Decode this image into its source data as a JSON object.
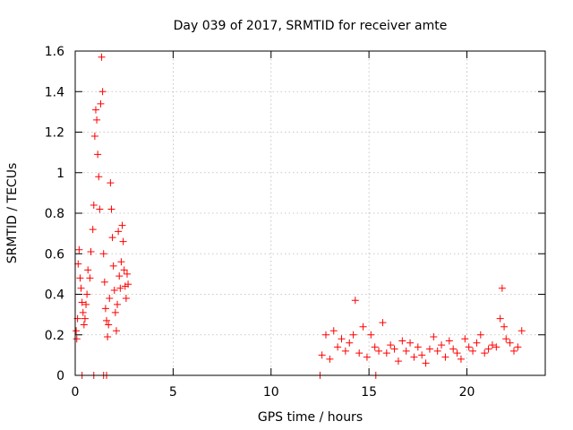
{
  "chart_data": {
    "type": "scatter",
    "title": "Day 039 of 2017, SRMTID for receiver amte",
    "xlabel": "GPS time / hours",
    "ylabel": "SRMTID / TECUs",
    "xlim": [
      0,
      24
    ],
    "ylim": [
      0,
      1.6
    ],
    "xticks": [
      0,
      5,
      10,
      15,
      20
    ],
    "yticks": [
      0,
      0.2,
      0.4,
      0.6,
      0.8,
      1,
      1.2,
      1.4,
      1.6
    ],
    "xtick_labels": [
      "0",
      "5",
      "10",
      "15",
      "20"
    ],
    "ytick_labels": [
      "0",
      "0.2",
      "0.4",
      "0.6",
      "0.8",
      "1",
      "1.2",
      "1.4",
      "1.6"
    ],
    "grid": true,
    "marker": "plus",
    "series": [
      {
        "name": "SRMTID",
        "color": "#ff0000",
        "x": [
          0.05,
          0.08,
          0.12,
          0.15,
          0.2,
          0.25,
          0.3,
          0.35,
          0.4,
          0.45,
          0.5,
          0.55,
          0.6,
          0.65,
          0.75,
          0.8,
          0.9,
          0.95,
          1.0,
          1.05,
          1.1,
          1.15,
          1.2,
          1.25,
          1.3,
          1.35,
          1.4,
          1.45,
          1.5,
          1.55,
          1.6,
          1.65,
          1.7,
          1.75,
          1.8,
          1.85,
          1.9,
          1.95,
          2.0,
          2.05,
          2.1,
          2.15,
          2.2,
          2.25,
          2.3,
          2.35,
          2.4,
          2.45,
          2.5,
          2.55,
          2.6,
          2.65,
          2.7,
          0.35,
          0.95,
          1.45,
          1.6,
          12.6,
          12.8,
          13.0,
          13.2,
          13.4,
          13.6,
          13.8,
          14.0,
          14.2,
          14.3,
          14.5,
          14.7,
          14.9,
          15.1,
          15.3,
          15.5,
          15.7,
          15.9,
          16.1,
          16.3,
          16.5,
          16.7,
          16.9,
          17.1,
          17.3,
          17.5,
          17.7,
          17.9,
          18.1,
          18.3,
          18.5,
          18.7,
          18.9,
          19.1,
          19.3,
          19.5,
          19.7,
          19.9,
          20.1,
          20.3,
          20.5,
          20.7,
          20.9,
          21.1,
          21.3,
          21.5,
          21.7,
          21.8,
          21.9,
          22.0,
          22.2,
          22.4,
          22.6,
          22.8,
          12.5,
          15.35
        ],
        "y": [
          0.22,
          0.18,
          0.28,
          0.55,
          0.62,
          0.48,
          0.43,
          0.36,
          0.31,
          0.25,
          0.28,
          0.35,
          0.4,
          0.52,
          0.48,
          0.61,
          0.72,
          0.84,
          1.18,
          1.31,
          1.26,
          1.09,
          0.98,
          0.82,
          1.34,
          1.57,
          1.4,
          0.6,
          0.46,
          0.33,
          0.27,
          0.19,
          0.25,
          0.38,
          0.95,
          0.82,
          0.68,
          0.54,
          0.42,
          0.31,
          0.22,
          0.35,
          0.71,
          0.49,
          0.43,
          0.56,
          0.74,
          0.66,
          0.52,
          0.44,
          0.38,
          0.5,
          0.45,
          0.0,
          0.0,
          0.0,
          0.0,
          0.1,
          0.2,
          0.08,
          0.22,
          0.14,
          0.18,
          0.12,
          0.16,
          0.2,
          0.37,
          0.11,
          0.24,
          0.09,
          0.2,
          0.14,
          0.12,
          0.26,
          0.11,
          0.15,
          0.13,
          0.07,
          0.17,
          0.12,
          0.16,
          0.09,
          0.14,
          0.1,
          0.06,
          0.13,
          0.19,
          0.12,
          0.15,
          0.09,
          0.17,
          0.13,
          0.11,
          0.08,
          0.18,
          0.14,
          0.12,
          0.16,
          0.2,
          0.11,
          0.13,
          0.15,
          0.14,
          0.28,
          0.43,
          0.24,
          0.18,
          0.16,
          0.12,
          0.14,
          0.22,
          0.0,
          0.0
        ]
      }
    ]
  }
}
